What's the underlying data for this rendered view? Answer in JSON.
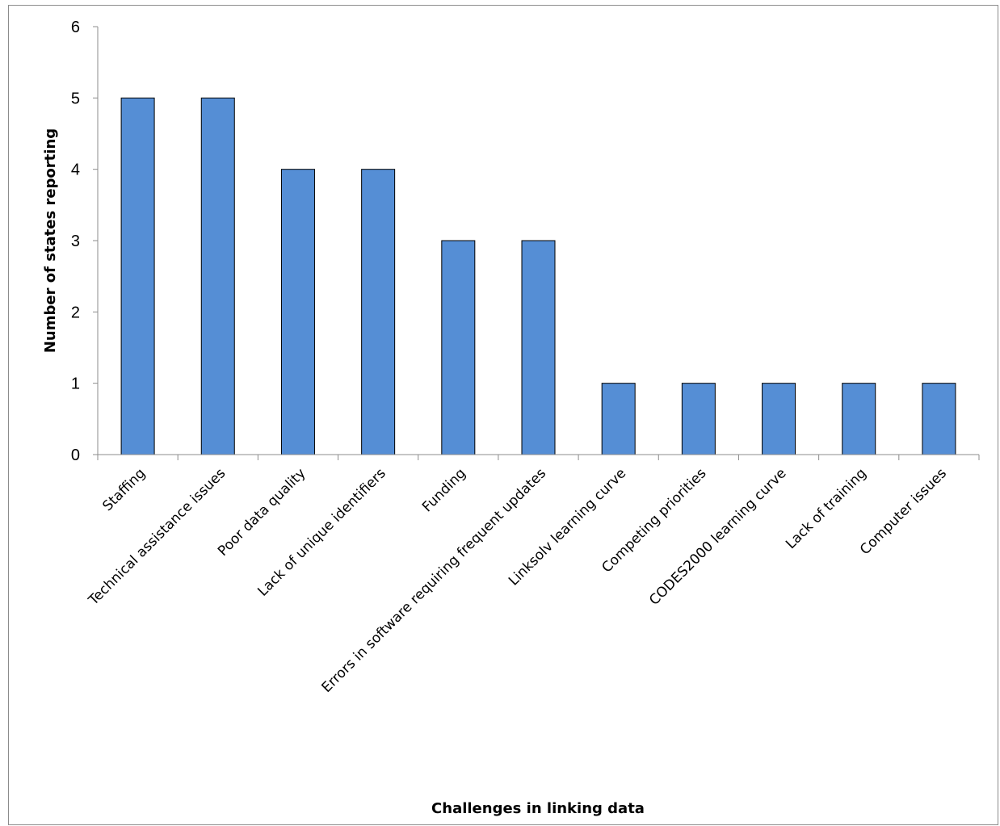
{
  "chart_data": {
    "type": "bar",
    "title": "",
    "xlabel": "Challenges in linking data",
    "ylabel": "Number of states reporting",
    "ylim": [
      0,
      6
    ],
    "yticks": [
      "0",
      "1",
      "2",
      "3",
      "4",
      "5",
      "6"
    ],
    "grid": false,
    "legend": "none",
    "bar_color": "#558ED5",
    "categories": [
      "Staffing",
      "Technical assistance issues",
      "Poor data quality",
      "Lack of unique identifiers",
      "Funding",
      "Errors in software requiring frequent updates",
      "Linksolv learning curve",
      "Competing priorities",
      "CODES2000 learning curve",
      "Lack of training",
      "Computer issues"
    ],
    "values": [
      5,
      5,
      4,
      4,
      3,
      3,
      1,
      1,
      1,
      1,
      1
    ]
  }
}
